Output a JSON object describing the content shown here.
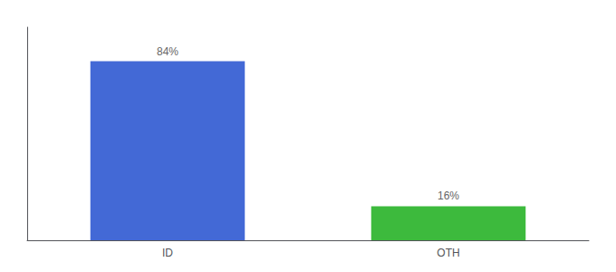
{
  "chart_data": {
    "type": "bar",
    "categories": [
      "ID",
      "OTH"
    ],
    "values": [
      84,
      16
    ],
    "colors": [
      "#4369d6",
      "#3dba3d"
    ],
    "data_labels": true,
    "value_labels": [
      "84%",
      "16%"
    ],
    "ylim": [
      0,
      100
    ],
    "tick_labels": "x",
    "grid": false
  }
}
